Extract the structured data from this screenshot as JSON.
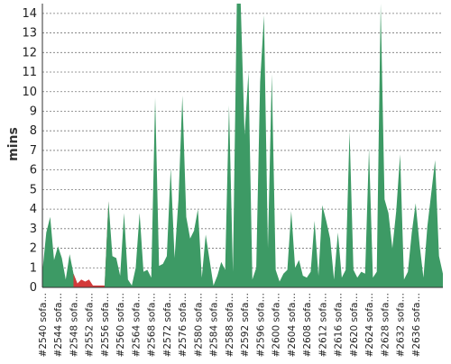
{
  "chart_data": {
    "type": "area",
    "ylabel": "mins",
    "ylim": [
      0,
      14.5
    ],
    "yticks": [
      0,
      1,
      2,
      3,
      4,
      5,
      6,
      7,
      8,
      9,
      10,
      11,
      12,
      13,
      14
    ],
    "grid": true,
    "x_tick_labels": [
      "#2540 sofa…",
      "#2544 sofa…",
      "#2548 sofa…",
      "#2552 sofa…",
      "#2556 sofa…",
      "#2560 sofa…",
      "#2564 sofa…",
      "#2568 sofa…",
      "#2572 sofa…",
      "#2576 sofa…",
      "#2580 sofa…",
      "#2584 sofa…",
      "#2588 sofa…",
      "#2592 sofa…",
      "#2596 sofa…",
      "#2600 sofa…",
      "#2604 sofa…",
      "#2608 sofa…",
      "#2612 sofa…",
      "#2616 sofa…",
      "#2620 sofa…",
      "#2624 sofa…",
      "#2628 sofa…",
      "#2632 sofa…",
      "#2636 sofa…"
    ],
    "colors": {
      "success": "#3d9a65",
      "failure": "#d33a3a",
      "grid": "#777777",
      "axis": "#333333"
    },
    "points": [
      {
        "x": 0,
        "y": 0.8,
        "status": "success"
      },
      {
        "x": 0.5,
        "y": 2.8,
        "status": "success"
      },
      {
        "x": 1,
        "y": 3.6,
        "status": "success"
      },
      {
        "x": 1.5,
        "y": 1.4,
        "status": "success"
      },
      {
        "x": 2,
        "y": 2.1,
        "status": "success"
      },
      {
        "x": 2.5,
        "y": 1.5,
        "status": "success"
      },
      {
        "x": 3,
        "y": 0.4,
        "status": "success"
      },
      {
        "x": 3.5,
        "y": 1.7,
        "status": "success"
      },
      {
        "x": 4,
        "y": 0.7,
        "status": "success"
      },
      {
        "x": 4.5,
        "y": 0.2,
        "status": "failure"
      },
      {
        "x": 5,
        "y": 0.4,
        "status": "failure"
      },
      {
        "x": 5.5,
        "y": 0.3,
        "status": "failure"
      },
      {
        "x": 6,
        "y": 0.4,
        "status": "failure"
      },
      {
        "x": 6.5,
        "y": 0.1,
        "status": "failure"
      },
      {
        "x": 7,
        "y": 0.1,
        "status": "failure"
      },
      {
        "x": 7.5,
        "y": 0.1,
        "status": "failure"
      },
      {
        "x": 8,
        "y": 0.1,
        "status": "failure"
      },
      {
        "x": 8.5,
        "y": 4.4,
        "status": "success"
      },
      {
        "x": 9,
        "y": 1.6,
        "status": "success"
      },
      {
        "x": 9.5,
        "y": 1.5,
        "status": "success"
      },
      {
        "x": 10,
        "y": 0.6,
        "status": "success"
      },
      {
        "x": 10.5,
        "y": 3.8,
        "status": "success"
      },
      {
        "x": 11,
        "y": 0.4,
        "status": "success"
      },
      {
        "x": 11.5,
        "y": 0.1,
        "status": "success"
      },
      {
        "x": 12,
        "y": 1.0,
        "status": "success"
      },
      {
        "x": 12.5,
        "y": 3.8,
        "status": "success"
      },
      {
        "x": 13,
        "y": 0.8,
        "status": "success"
      },
      {
        "x": 13.5,
        "y": 0.9,
        "status": "success"
      },
      {
        "x": 14,
        "y": 0.5,
        "status": "success"
      },
      {
        "x": 14.5,
        "y": 9.7,
        "status": "success"
      },
      {
        "x": 15,
        "y": 1.1,
        "status": "success"
      },
      {
        "x": 15.5,
        "y": 1.2,
        "status": "success"
      },
      {
        "x": 16,
        "y": 1.6,
        "status": "success"
      },
      {
        "x": 16.5,
        "y": 6.1,
        "status": "success"
      },
      {
        "x": 17,
        "y": 1.5,
        "status": "success"
      },
      {
        "x": 17.5,
        "y": 4.5,
        "status": "success"
      },
      {
        "x": 18,
        "y": 9.8,
        "status": "success"
      },
      {
        "x": 18.5,
        "y": 3.6,
        "status": "success"
      },
      {
        "x": 19,
        "y": 2.5,
        "status": "success"
      },
      {
        "x": 19.5,
        "y": 2.9,
        "status": "success"
      },
      {
        "x": 20,
        "y": 4.0,
        "status": "success"
      },
      {
        "x": 20.5,
        "y": 0.5,
        "status": "success"
      },
      {
        "x": 21,
        "y": 2.7,
        "status": "success"
      },
      {
        "x": 21.5,
        "y": 1.4,
        "status": "success"
      },
      {
        "x": 22,
        "y": 0.1,
        "status": "success"
      },
      {
        "x": 22.5,
        "y": 0.6,
        "status": "success"
      },
      {
        "x": 23,
        "y": 1.3,
        "status": "success"
      },
      {
        "x": 23.5,
        "y": 0.9,
        "status": "success"
      },
      {
        "x": 24,
        "y": 9.3,
        "status": "success"
      },
      {
        "x": 24.5,
        "y": 0.8,
        "status": "success"
      },
      {
        "x": 25,
        "y": 14.5,
        "status": "success"
      },
      {
        "x": 25.5,
        "y": 14.5,
        "status": "success"
      },
      {
        "x": 26,
        "y": 7.8,
        "status": "success"
      },
      {
        "x": 26.5,
        "y": 11.0,
        "status": "success"
      },
      {
        "x": 27,
        "y": 0.4,
        "status": "success"
      },
      {
        "x": 27.5,
        "y": 1.0,
        "status": "success"
      },
      {
        "x": 28,
        "y": 10.5,
        "status": "success"
      },
      {
        "x": 28.5,
        "y": 13.9,
        "status": "success"
      },
      {
        "x": 29,
        "y": 2.0,
        "status": "success"
      },
      {
        "x": 29.5,
        "y": 10.9,
        "status": "success"
      },
      {
        "x": 30,
        "y": 0.9,
        "status": "success"
      },
      {
        "x": 30.5,
        "y": 0.3,
        "status": "success"
      },
      {
        "x": 31,
        "y": 0.7,
        "status": "success"
      },
      {
        "x": 31.5,
        "y": 0.9,
        "status": "success"
      },
      {
        "x": 32,
        "y": 3.9,
        "status": "success"
      },
      {
        "x": 32.5,
        "y": 1.0,
        "status": "success"
      },
      {
        "x": 33,
        "y": 1.4,
        "status": "success"
      },
      {
        "x": 33.5,
        "y": 0.6,
        "status": "success"
      },
      {
        "x": 34,
        "y": 0.5,
        "status": "success"
      },
      {
        "x": 34.5,
        "y": 0.8,
        "status": "success"
      },
      {
        "x": 35,
        "y": 3.4,
        "status": "success"
      },
      {
        "x": 35.5,
        "y": 0.6,
        "status": "success"
      },
      {
        "x": 36,
        "y": 4.2,
        "status": "success"
      },
      {
        "x": 36.5,
        "y": 3.4,
        "status": "success"
      },
      {
        "x": 37,
        "y": 2.5,
        "status": "success"
      },
      {
        "x": 37.5,
        "y": 0.4,
        "status": "success"
      },
      {
        "x": 38,
        "y": 2.8,
        "status": "success"
      },
      {
        "x": 38.5,
        "y": 0.5,
        "status": "success"
      },
      {
        "x": 39,
        "y": 0.9,
        "status": "success"
      },
      {
        "x": 39.5,
        "y": 8.0,
        "status": "success"
      },
      {
        "x": 40,
        "y": 0.9,
        "status": "success"
      },
      {
        "x": 40.5,
        "y": 0.5,
        "status": "success"
      },
      {
        "x": 41,
        "y": 0.8,
        "status": "success"
      },
      {
        "x": 41.5,
        "y": 0.7,
        "status": "success"
      },
      {
        "x": 42,
        "y": 7.1,
        "status": "success"
      },
      {
        "x": 42.5,
        "y": 0.5,
        "status": "success"
      },
      {
        "x": 43,
        "y": 0.8,
        "status": "success"
      },
      {
        "x": 43.5,
        "y": 14.5,
        "status": "success"
      },
      {
        "x": 44,
        "y": 4.5,
        "status": "success"
      },
      {
        "x": 44.5,
        "y": 3.8,
        "status": "success"
      },
      {
        "x": 45,
        "y": 2.0,
        "status": "success"
      },
      {
        "x": 45.5,
        "y": 3.9,
        "status": "success"
      },
      {
        "x": 46,
        "y": 6.8,
        "status": "success"
      },
      {
        "x": 46.5,
        "y": 0.4,
        "status": "success"
      },
      {
        "x": 47,
        "y": 0.8,
        "status": "success"
      },
      {
        "x": 47.5,
        "y": 2.8,
        "status": "success"
      },
      {
        "x": 48,
        "y": 4.3,
        "status": "success"
      },
      {
        "x": 48.5,
        "y": 2.2,
        "status": "success"
      },
      {
        "x": 49,
        "y": 0.5,
        "status": "success"
      },
      {
        "x": 49.5,
        "y": 3.1,
        "status": "success"
      },
      {
        "x": 50,
        "y": 4.8,
        "status": "success"
      },
      {
        "x": 50.5,
        "y": 6.5,
        "status": "success"
      },
      {
        "x": 51,
        "y": 1.6,
        "status": "success"
      },
      {
        "x": 51.5,
        "y": 0.7,
        "status": "success"
      }
    ]
  }
}
